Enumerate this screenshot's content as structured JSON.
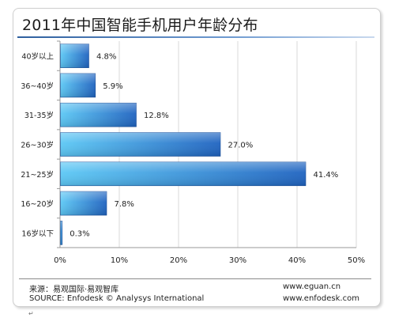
{
  "chart_data": {
    "type": "bar",
    "orientation": "horizontal",
    "title": "2011年中国智能手机用户年龄分布",
    "categories": [
      "40岁以上",
      "36~40岁",
      "31-35岁",
      "26~30岁",
      "21~25岁",
      "16~20岁",
      "16岁以下"
    ],
    "values": [
      4.8,
      5.9,
      12.8,
      27.0,
      41.4,
      7.8,
      0.3
    ],
    "data_labels": [
      "4.8%",
      "5.9%",
      "12.8%",
      "27.0%",
      "41.4%",
      "7.8%",
      "0.3%"
    ],
    "xlim": [
      0,
      50
    ],
    "xticks": [
      0,
      10,
      20,
      30,
      40,
      50
    ],
    "xtick_labels": [
      "0%",
      "10%",
      "20%",
      "30%",
      "40%",
      "50%"
    ],
    "grid": true,
    "legend": "none",
    "colors": {
      "bar_light": "#5cc8f5",
      "bar_dark": "#1f63c0",
      "grid": "#d8d8d8"
    }
  },
  "footer": {
    "source_cn": "来源：易观国际·易观智库",
    "source_en": "SOURCE: Enfodesk © Analysys International",
    "url_1": "www.eguan.cn",
    "url_2": "www.enfodesk.com"
  },
  "paragraph_mark": "↵"
}
